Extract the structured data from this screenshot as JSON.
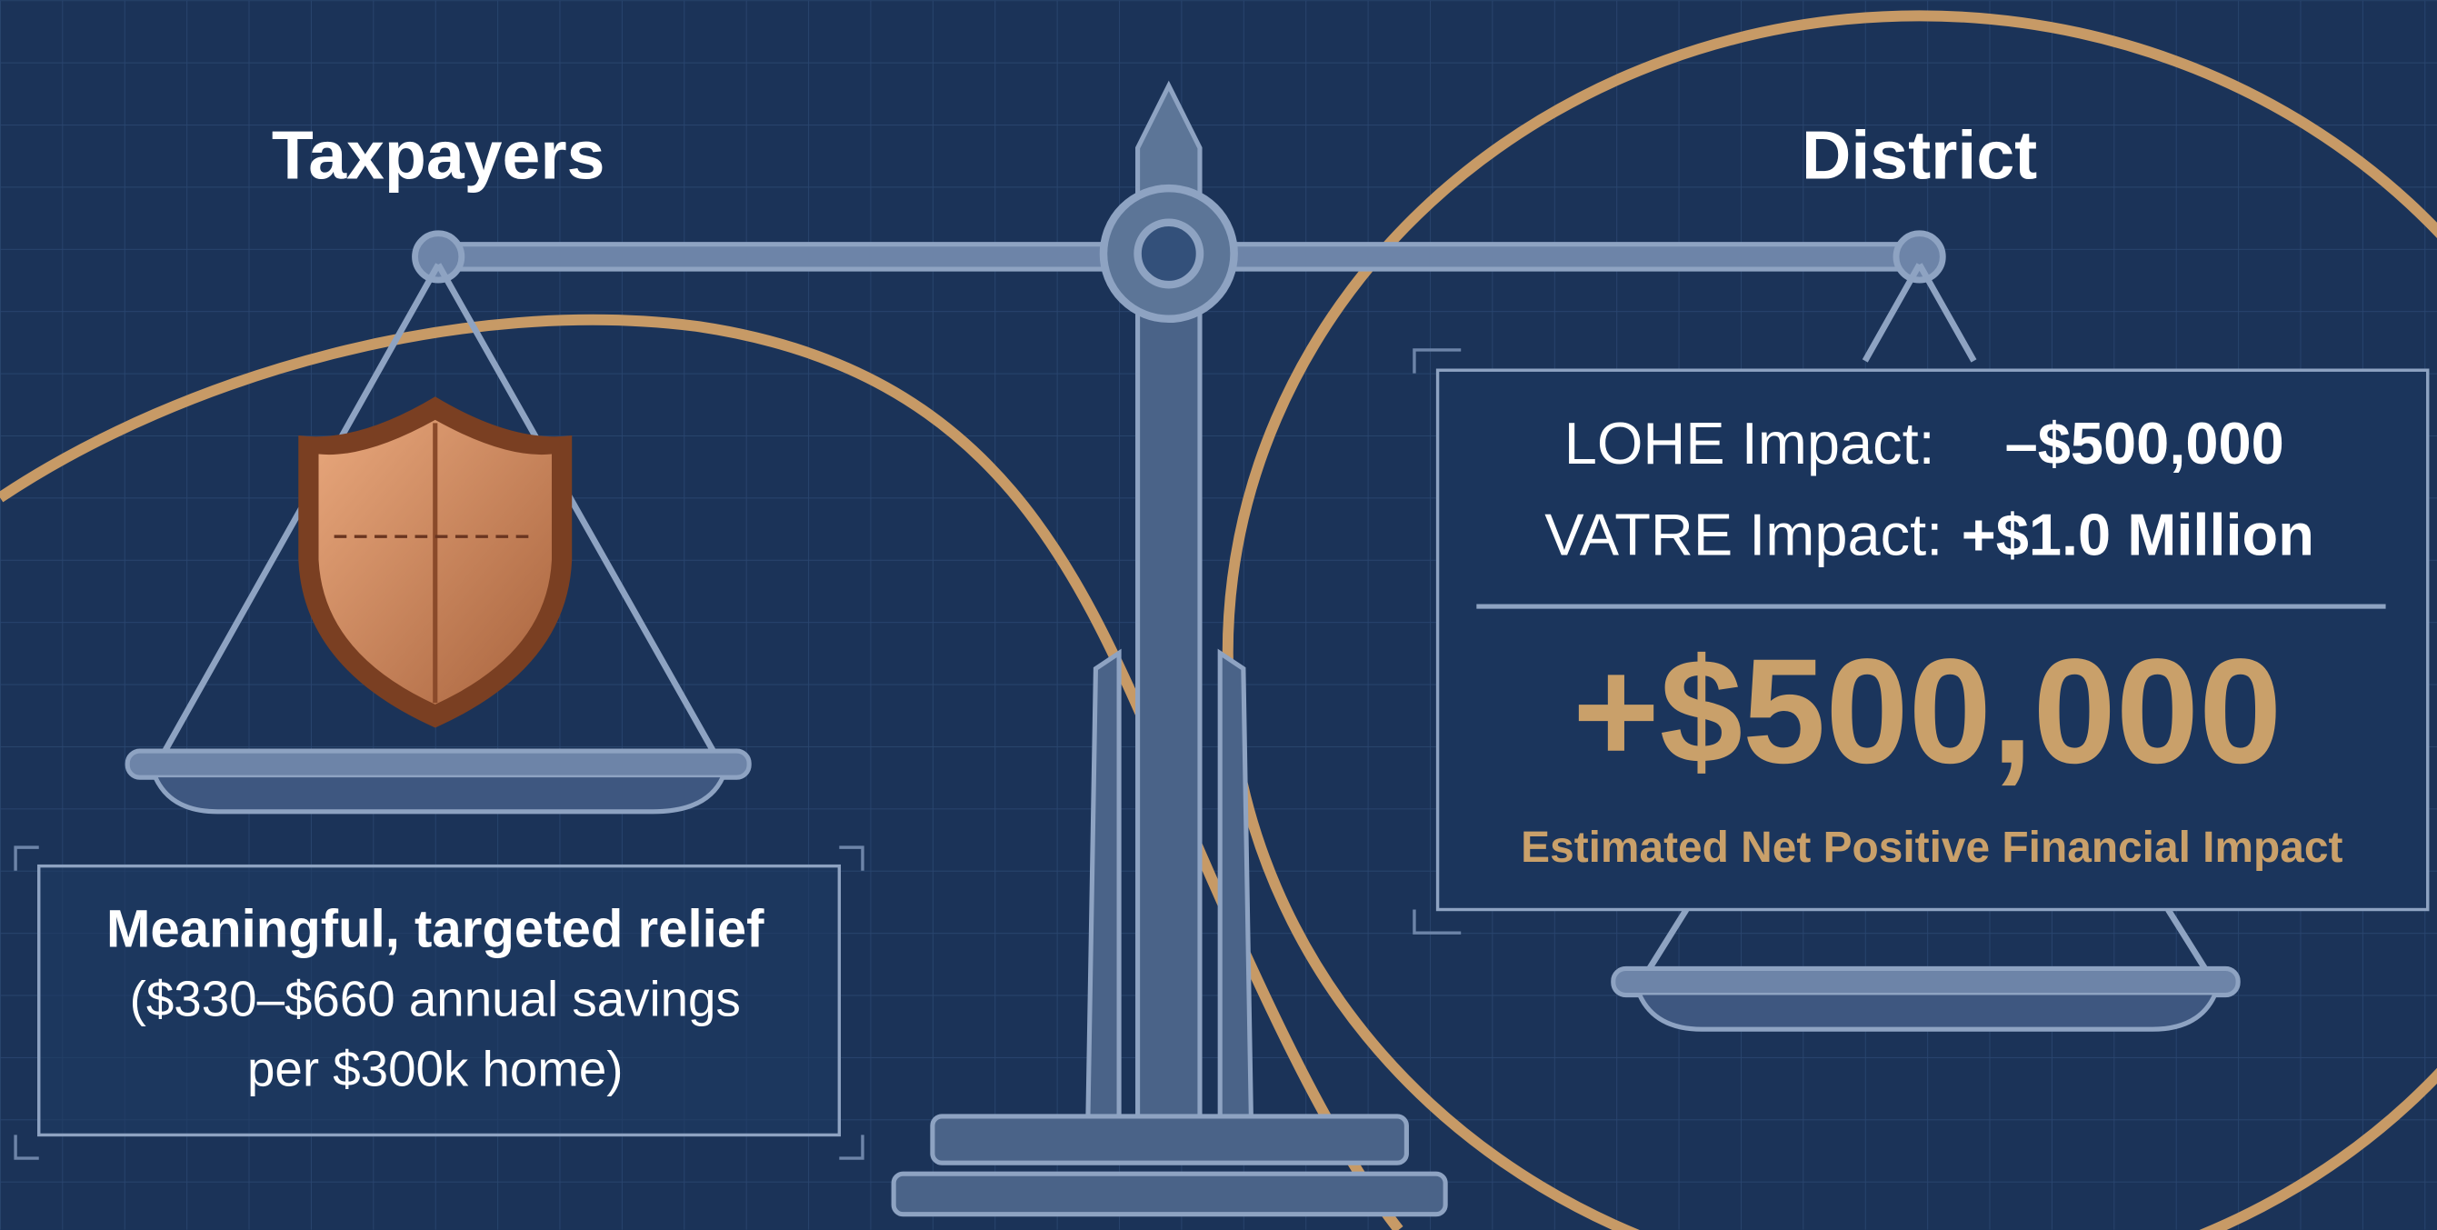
{
  "left": {
    "title": "Taxpayers",
    "box": {
      "heading": "Meaningful, targeted relief",
      "lines": [
        "($330–$660 annual savings",
        "per $300k home)"
      ]
    }
  },
  "right": {
    "title": "District",
    "rows": [
      {
        "label": "LOHE Impact:",
        "value": "–$500,000"
      },
      {
        "label": "VATRE Impact:",
        "value": "+$1.0 Million"
      }
    ],
    "net": {
      "value": "+$500,000",
      "caption": "Estimated Net Positive Financial Impact"
    }
  }
}
